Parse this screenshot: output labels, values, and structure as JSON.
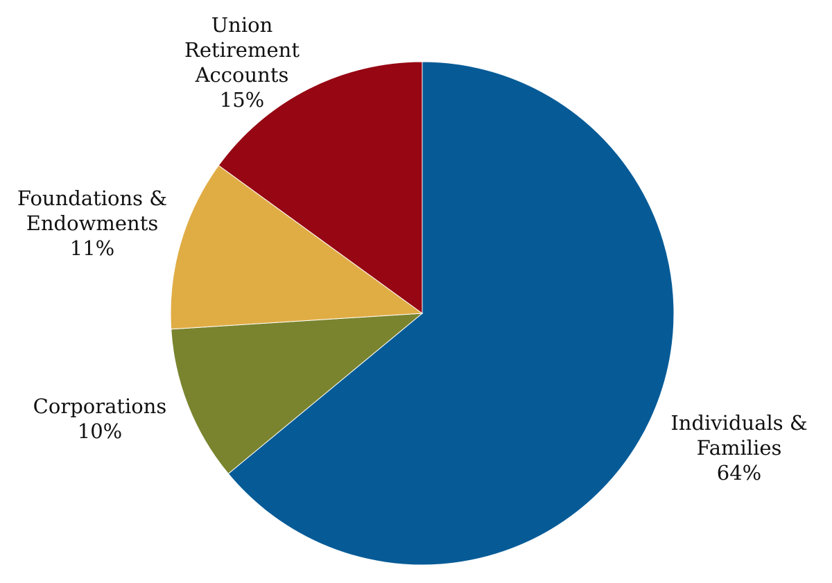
{
  "chart_data": {
    "type": "pie",
    "title": "",
    "legend": "none",
    "start_angle_deg": 0,
    "direction": "clockwise",
    "slices": [
      {
        "label_lines": [
          "Individuals &",
          "Families"
        ],
        "value": 64,
        "value_label": "64%",
        "color": "#065b97"
      },
      {
        "label_lines": [
          "Corporations"
        ],
        "value": 10,
        "value_label": "10%",
        "color": "#7a842e"
      },
      {
        "label_lines": [
          "Foundations &",
          "Endowments"
        ],
        "value": 11,
        "value_label": "11%",
        "color": "#e0ad45"
      },
      {
        "label_lines": [
          "Union",
          "Retirement",
          "Accounts"
        ],
        "value": 15,
        "value_label": "15%",
        "color": "#960613"
      }
    ]
  }
}
